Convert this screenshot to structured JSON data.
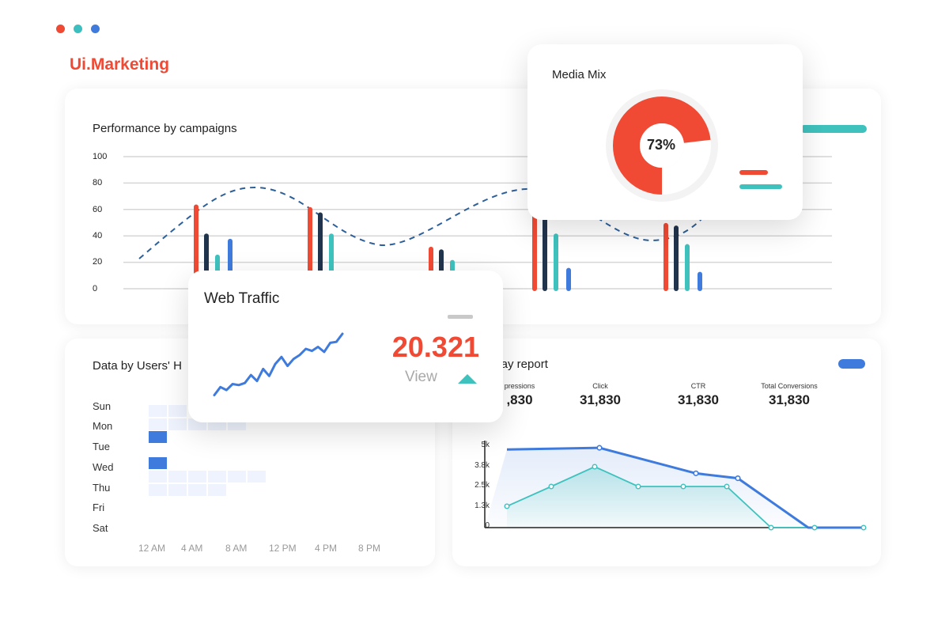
{
  "window": {
    "dots": [
      {
        "name": "red",
        "color": "#f04a34"
      },
      {
        "name": "teal",
        "color": "#3cbfbf"
      },
      {
        "name": "blue",
        "color": "#3f7bdc"
      }
    ]
  },
  "brand": {
    "name": "Ui.Marketing",
    "color": "#f04a34"
  },
  "colors": {
    "red": "#f04a34",
    "navy": "#21344d",
    "teal": "#3fc2be",
    "blue": "#3f7bdc",
    "dash": "#2d5f9a"
  },
  "performance": {
    "title": "Performance by campaigns",
    "y_ticks": [
      "100",
      "80",
      "60",
      "40",
      "20",
      "0"
    ],
    "chart_data": {
      "type": "bar",
      "ylim": [
        0,
        100
      ],
      "grid": true,
      "groups": [
        {
          "values": [
            62,
            40,
            24,
            36
          ]
        },
        {
          "values": [
            60,
            56,
            40,
            null
          ]
        },
        {
          "values": [
            30,
            28,
            20,
            null
          ]
        },
        {
          "values": [
            60,
            60,
            40,
            14
          ]
        },
        {
          "values": [
            48,
            46,
            32,
            11
          ]
        }
      ],
      "series_colors": [
        "#f04a34",
        "#21344d",
        "#3fc2be",
        "#3f7bdc"
      ],
      "trend_line": "dashed wave"
    }
  },
  "media_mix": {
    "title": "Media Mix",
    "percent_label": "73%",
    "chart_data": {
      "type": "pie",
      "values": [
        73,
        27
      ],
      "colors": [
        "#f04a34",
        "#f1f1f1"
      ]
    }
  },
  "web_traffic": {
    "title": "Web Traffic",
    "value": "20.321",
    "sublabel": "View",
    "trend": "up",
    "chart_data": {
      "type": "line",
      "values": [
        2,
        10,
        7,
        13,
        12,
        14,
        22,
        16,
        28,
        21,
        33,
        40,
        31,
        38,
        42,
        48,
        46,
        50,
        45,
        54,
        55,
        63
      ]
    }
  },
  "users_heatmap": {
    "title": "Data by Users' H",
    "days": [
      "Sun",
      "Mon",
      "Tue",
      "Wed",
      "Thu",
      "Fri",
      "Sat"
    ],
    "hours": [
      "12 AM",
      "4 AM",
      "8 AM",
      "12 PM",
      "4 PM",
      "8 PM"
    ],
    "chart_data": {
      "type": "heatmap",
      "active": [
        {
          "day": "Tue",
          "col": 0
        },
        {
          "day": "Wed",
          "col": 0
        }
      ]
    }
  },
  "display_report": {
    "title": "play report",
    "metrics": [
      {
        "label": "pressions",
        "value": ",830"
      },
      {
        "label": "Click",
        "value": "31,830"
      },
      {
        "label": "CTR",
        "value": "31,830"
      },
      {
        "label": "Total Conversions",
        "value": "31,830"
      }
    ],
    "y_ticks": [
      "5k",
      "3.8k",
      "2.5k",
      "1.3k",
      "0"
    ],
    "chart_data": {
      "type": "area",
      "ylim": [
        0,
        5000
      ],
      "series": [
        {
          "values": [
            4750,
            4850,
            3300,
            3000,
            0,
            0,
            0
          ]
        },
        {
          "values": [
            1300,
            2500,
            3700,
            2500,
            2500,
            2500,
            0,
            0,
            0
          ]
        }
      ]
    }
  }
}
